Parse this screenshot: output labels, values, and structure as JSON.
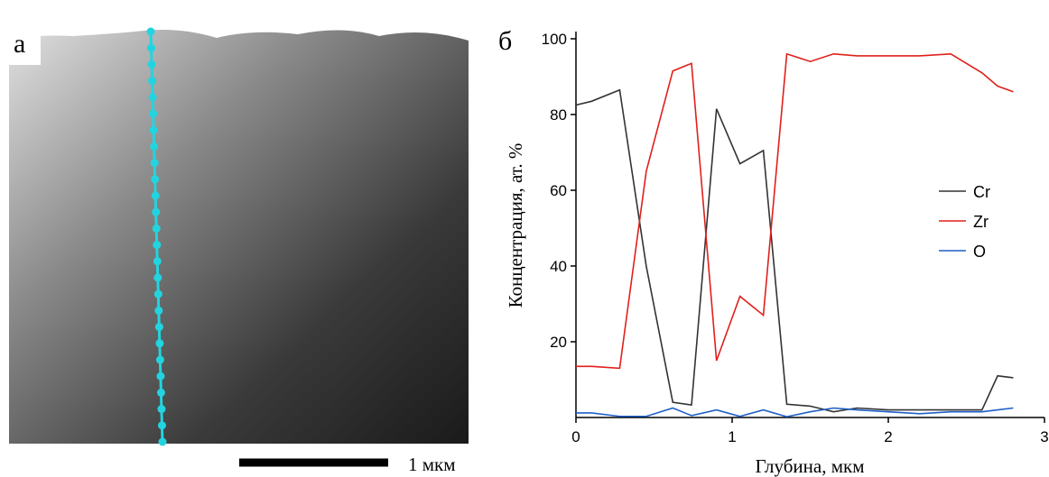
{
  "panel_a": {
    "label": "а",
    "scale_bar": "1 мкм"
  },
  "chart_data": {
    "type": "line",
    "panel_label": "б",
    "x_label": "Глубина, мкм",
    "y_label": "Концентрация, ат. %",
    "x": [
      0,
      0.1,
      0.28,
      0.45,
      0.62,
      0.74,
      0.9,
      1.05,
      1.2,
      1.35,
      1.5,
      1.65,
      1.8,
      2.0,
      2.2,
      2.4,
      2.6,
      2.7,
      2.8
    ],
    "series": [
      {
        "name": "Cr",
        "color": "#333333",
        "values": [
          82.5,
          83.5,
          86.5,
          40,
          4,
          3.3,
          81.5,
          67,
          70.5,
          3.5,
          3,
          1.5,
          2.5,
          2,
          2,
          2,
          2,
          11,
          10.5
        ]
      },
      {
        "name": "Zr",
        "color": "#e0201b",
        "values": [
          13.5,
          13.5,
          13,
          65,
          91.5,
          93.5,
          15,
          32,
          27,
          96,
          94,
          96,
          95.5,
          95.5,
          95.5,
          96,
          91,
          87.5,
          86
        ]
      },
      {
        "name": "O",
        "color": "#1f5fc8",
        "values": [
          1.2,
          1.2,
          0.3,
          0.3,
          2.5,
          0.5,
          2,
          0.3,
          2,
          0.2,
          1.5,
          2.5,
          2,
          1.5,
          1,
          1.5,
          1.5,
          2,
          2.5
        ]
      }
    ],
    "xlim": [
      0,
      3
    ],
    "xticks": [
      0,
      1,
      2,
      3
    ],
    "ylim": [
      0,
      100
    ],
    "yticks": [
      20,
      40,
      60,
      80,
      100
    ],
    "legend": "right"
  }
}
